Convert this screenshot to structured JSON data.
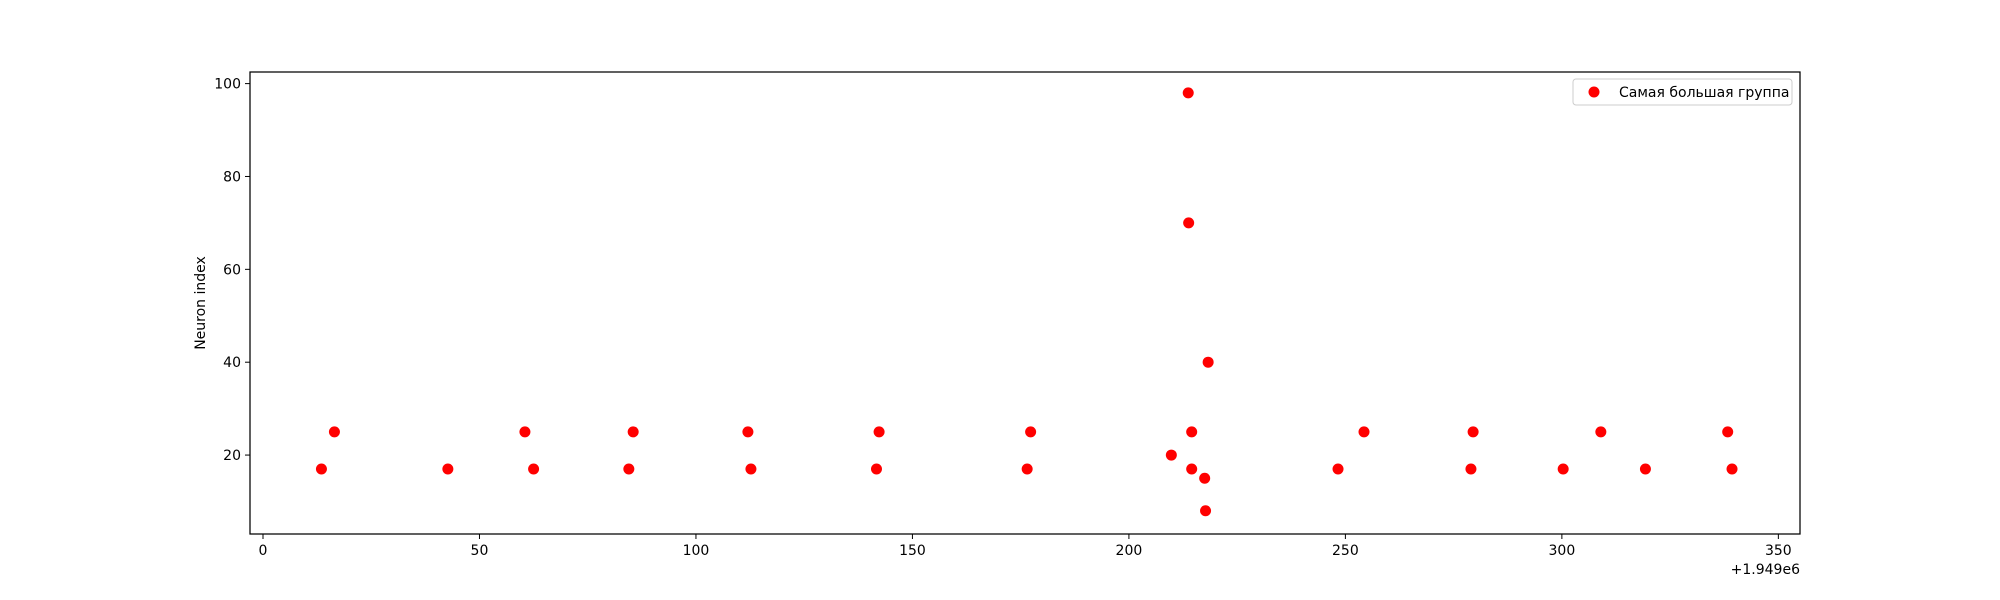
{
  "chart_data": {
    "type": "scatter",
    "title": "",
    "xlabel": "",
    "ylabel": "Neuron index",
    "x_offset_label": "+1.949e6",
    "xlim": [
      -3,
      355
    ],
    "ylim": [
      3,
      102.5
    ],
    "xticks": [
      0,
      50,
      100,
      150,
      200,
      250,
      300,
      350
    ],
    "yticks": [
      20,
      40,
      60,
      80,
      100
    ],
    "grid": false,
    "legend_position": "top-right",
    "series": [
      {
        "name": "Самая большая группа",
        "color": "#ff0000",
        "points": [
          {
            "x": 13.5,
            "y": 17
          },
          {
            "x": 16.5,
            "y": 25
          },
          {
            "x": 42.7,
            "y": 17
          },
          {
            "x": 60.5,
            "y": 25
          },
          {
            "x": 62.5,
            "y": 17
          },
          {
            "x": 84.5,
            "y": 17
          },
          {
            "x": 85.5,
            "y": 25
          },
          {
            "x": 112.0,
            "y": 25
          },
          {
            "x": 112.7,
            "y": 17
          },
          {
            "x": 141.7,
            "y": 17
          },
          {
            "x": 142.3,
            "y": 25
          },
          {
            "x": 176.5,
            "y": 17
          },
          {
            "x": 177.3,
            "y": 25
          },
          {
            "x": 209.8,
            "y": 20
          },
          {
            "x": 213.7,
            "y": 98
          },
          {
            "x": 213.8,
            "y": 70
          },
          {
            "x": 214.5,
            "y": 25
          },
          {
            "x": 214.5,
            "y": 17
          },
          {
            "x": 217.5,
            "y": 15
          },
          {
            "x": 217.7,
            "y": 8
          },
          {
            "x": 218.3,
            "y": 40
          },
          {
            "x": 248.3,
            "y": 17
          },
          {
            "x": 254.3,
            "y": 25
          },
          {
            "x": 279.0,
            "y": 17
          },
          {
            "x": 279.5,
            "y": 25
          },
          {
            "x": 300.3,
            "y": 17
          },
          {
            "x": 309.0,
            "y": 25
          },
          {
            "x": 319.3,
            "y": 17
          },
          {
            "x": 338.3,
            "y": 25
          },
          {
            "x": 339.3,
            "y": 17
          }
        ]
      }
    ]
  }
}
